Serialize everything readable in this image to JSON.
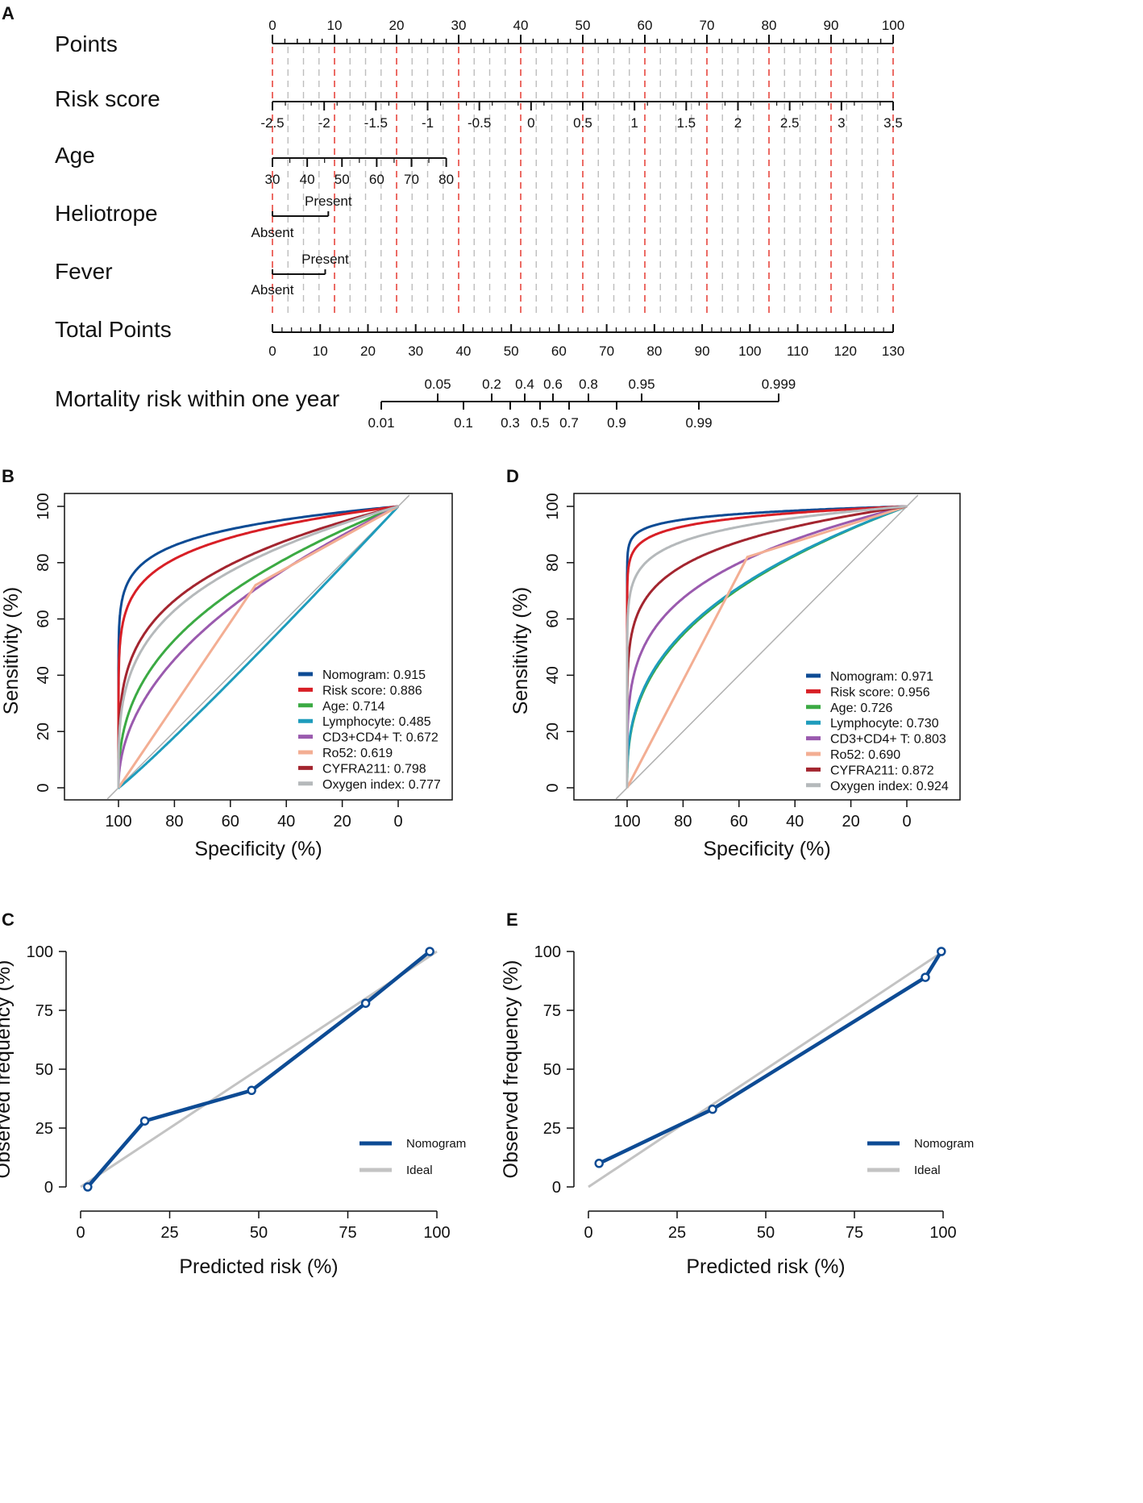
{
  "colors": {
    "nomogram": "#0D4B94",
    "risk_score": "#D81F26",
    "age": "#3BAA43",
    "lymphocyte": "#1E9CBC",
    "cd3cd4": "#9A5AAE",
    "ro52": "#F3AE93",
    "cyfra211": "#A3252F",
    "oxygen_index": "#B5B9BB",
    "ideal": "#C3C3C3",
    "diagonal": "#B0B0B0",
    "red_dash": "#E8473F",
    "grey_dash": "#BDBDBD"
  },
  "chart_data": [
    {
      "panel": "A",
      "type": "nomogram",
      "title": "",
      "rows": [
        {
          "label": "Points",
          "ticks": [
            "0",
            "10",
            "20",
            "30",
            "40",
            "50",
            "60",
            "70",
            "80",
            "90",
            "100"
          ]
        },
        {
          "label": "Risk score",
          "ticks": [
            "-2.5",
            "-2",
            "-1.5",
            "-1",
            "-0.5",
            "0",
            "0.5",
            "1",
            "1.5",
            "2",
            "2.5",
            "3",
            "3.5"
          ]
        },
        {
          "label": "Age",
          "ticks": [
            "30",
            "40",
            "50",
            "60",
            "70",
            "80"
          ]
        },
        {
          "label": "Heliotrope",
          "ticks": [
            "Absent",
            "Present"
          ]
        },
        {
          "label": "Fever",
          "ticks": [
            "Absent",
            "Present"
          ]
        },
        {
          "label": "Total Points",
          "ticks": [
            "0",
            "10",
            "20",
            "30",
            "40",
            "50",
            "60",
            "70",
            "80",
            "90",
            "100",
            "110",
            "120",
            "130"
          ]
        },
        {
          "label": "Mortality risk within one year",
          "ticks_top": [
            "0.05",
            "0.2",
            "0.4",
            "0.6",
            "0.8",
            "0.95",
            "0.999"
          ],
          "ticks_bottom": [
            "0.01",
            "0.1",
            "0.3",
            "0.5",
            "0.7",
            "0.9",
            "0.99"
          ]
        }
      ],
      "heliotrope_points": {
        "Absent": 0,
        "Present": 9
      },
      "fever_points": {
        "Absent": 0,
        "Present": 8.5
      },
      "age_points": {
        "30": 0,
        "80": 28
      }
    },
    {
      "panel": "B",
      "type": "line",
      "xlabel": "Specificity (%)",
      "ylabel": "Sensitivity (%)",
      "xticks": [
        "100",
        "80",
        "60",
        "40",
        "20",
        "0"
      ],
      "yticks": [
        "0",
        "20",
        "40",
        "60",
        "80",
        "100"
      ],
      "xlim": [
        100,
        0
      ],
      "ylim": [
        0,
        100
      ],
      "legend_position": "bottom-right",
      "series": [
        {
          "name": "Nomogram: 0.915",
          "auc": 0.915,
          "color_key": "nomogram",
          "shape": "smooth"
        },
        {
          "name": "Risk score: 0.886",
          "auc": 0.886,
          "color_key": "risk_score",
          "shape": "smooth"
        },
        {
          "name": "Age: 0.714",
          "auc": 0.714,
          "color_key": "age",
          "shape": "smooth"
        },
        {
          "name": "Lymphocyte: 0.485",
          "auc": 0.485,
          "color_key": "lymphocyte",
          "shape": "smooth"
        },
        {
          "name": "CD3+CD4+ T: 0.672",
          "auc": 0.672,
          "color_key": "cd3cd4",
          "shape": "smooth",
          "sup": true
        },
        {
          "name": "Ro52: 0.619",
          "auc": 0.619,
          "color_key": "ro52",
          "shape": "polyline",
          "points": [
            [
              100,
              0
            ],
            [
              51,
              72
            ],
            [
              0,
              100
            ]
          ]
        },
        {
          "name": "CYFRA211: 0.798",
          "auc": 0.798,
          "color_key": "cyfra211",
          "shape": "smooth"
        },
        {
          "name": "Oxygen index: 0.777",
          "auc": 0.777,
          "color_key": "oxygen_index",
          "shape": "smooth"
        }
      ]
    },
    {
      "panel": "D",
      "type": "line",
      "xlabel": "Specificity (%)",
      "ylabel": "Sensitivity (%)",
      "xticks": [
        "100",
        "80",
        "60",
        "40",
        "20",
        "0"
      ],
      "yticks": [
        "0",
        "20",
        "40",
        "60",
        "80",
        "100"
      ],
      "xlim": [
        100,
        0
      ],
      "ylim": [
        0,
        100
      ],
      "legend_position": "bottom-right",
      "series": [
        {
          "name": "Nomogram: 0.971",
          "auc": 0.971,
          "color_key": "nomogram",
          "shape": "smooth"
        },
        {
          "name": "Risk score: 0.956",
          "auc": 0.956,
          "color_key": "risk_score",
          "shape": "smooth"
        },
        {
          "name": "Age: 0.726",
          "auc": 0.726,
          "color_key": "age",
          "shape": "smooth"
        },
        {
          "name": "Lymphocyte: 0.730",
          "auc": 0.73,
          "color_key": "lymphocyte",
          "shape": "smooth"
        },
        {
          "name": "CD3+CD4+ T: 0.803",
          "auc": 0.803,
          "color_key": "cd3cd4",
          "shape": "smooth",
          "sup": true
        },
        {
          "name": "Ro52: 0.690",
          "auc": 0.69,
          "color_key": "ro52",
          "shape": "polyline",
          "points": [
            [
              100,
              0
            ],
            [
              57,
              82
            ],
            [
              0,
              100
            ]
          ]
        },
        {
          "name": "CYFRA211: 0.872",
          "auc": 0.872,
          "color_key": "cyfra211",
          "shape": "smooth"
        },
        {
          "name": "Oxygen index: 0.924",
          "auc": 0.924,
          "color_key": "oxygen_index",
          "shape": "smooth"
        }
      ]
    },
    {
      "panel": "C",
      "type": "line",
      "xlabel": "Predicted risk  (%)",
      "ylabel": "Observed frequency (%)",
      "xticks": [
        "0",
        "25",
        "50",
        "75",
        "100"
      ],
      "yticks": [
        "0",
        "25",
        "50",
        "75",
        "100"
      ],
      "xlim": [
        0,
        100
      ],
      "ylim": [
        0,
        100
      ],
      "legend_position": "bottom-right",
      "series": [
        {
          "name": "Nomogram",
          "color_key": "nomogram",
          "x": [
            2,
            18,
            48,
            80,
            98
          ],
          "y": [
            0,
            28,
            41,
            78,
            100
          ]
        },
        {
          "name": "Ideal",
          "color_key": "ideal",
          "x": [
            0,
            100
          ],
          "y": [
            0,
            100
          ]
        }
      ]
    },
    {
      "panel": "E",
      "type": "line",
      "xlabel": "Predicted risk  (%)",
      "ylabel": "Observed frequency (%)",
      "xticks": [
        "0",
        "25",
        "50",
        "75",
        "100"
      ],
      "yticks": [
        "0",
        "25",
        "50",
        "75",
        "100"
      ],
      "xlim": [
        0,
        100
      ],
      "ylim": [
        0,
        100
      ],
      "legend_position": "bottom-right",
      "series": [
        {
          "name": "Nomogram",
          "color_key": "nomogram",
          "x": [
            3,
            35,
            95,
            99.5
          ],
          "y": [
            10,
            33,
            89,
            100
          ]
        },
        {
          "name": "Ideal",
          "color_key": "ideal",
          "x": [
            0,
            100
          ],
          "y": [
            0,
            100
          ]
        }
      ]
    }
  ]
}
